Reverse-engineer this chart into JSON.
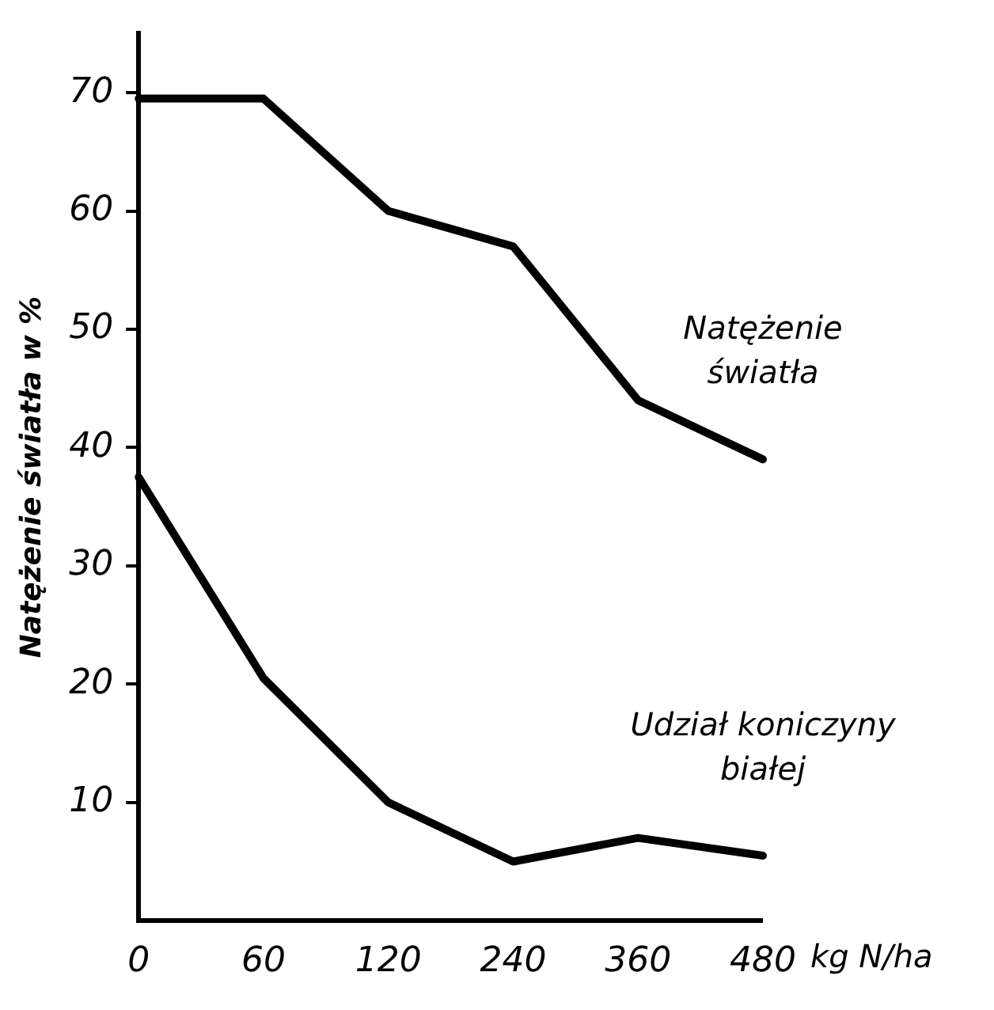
{
  "chart_data": {
    "type": "line",
    "xlabel": "kg N/ha",
    "ylabel": "Natężenie światła w %",
    "categories": [
      "0",
      "60",
      "120",
      "240",
      "360",
      "480"
    ],
    "series": [
      {
        "name": "Natężenie światła",
        "color": "#000000",
        "values": [
          69.5,
          69.5,
          60,
          57,
          44,
          39
        ]
      },
      {
        "name": "Udział koniczyny białej",
        "color": "#000000",
        "values": [
          37.5,
          20.5,
          10,
          5,
          7,
          5.5
        ]
      }
    ],
    "ylim": [
      0,
      75
    ],
    "yticks": [
      10,
      20,
      30,
      40,
      50,
      60,
      70
    ],
    "grid": false,
    "legend": false,
    "marker": "none",
    "line_style": "solid"
  }
}
